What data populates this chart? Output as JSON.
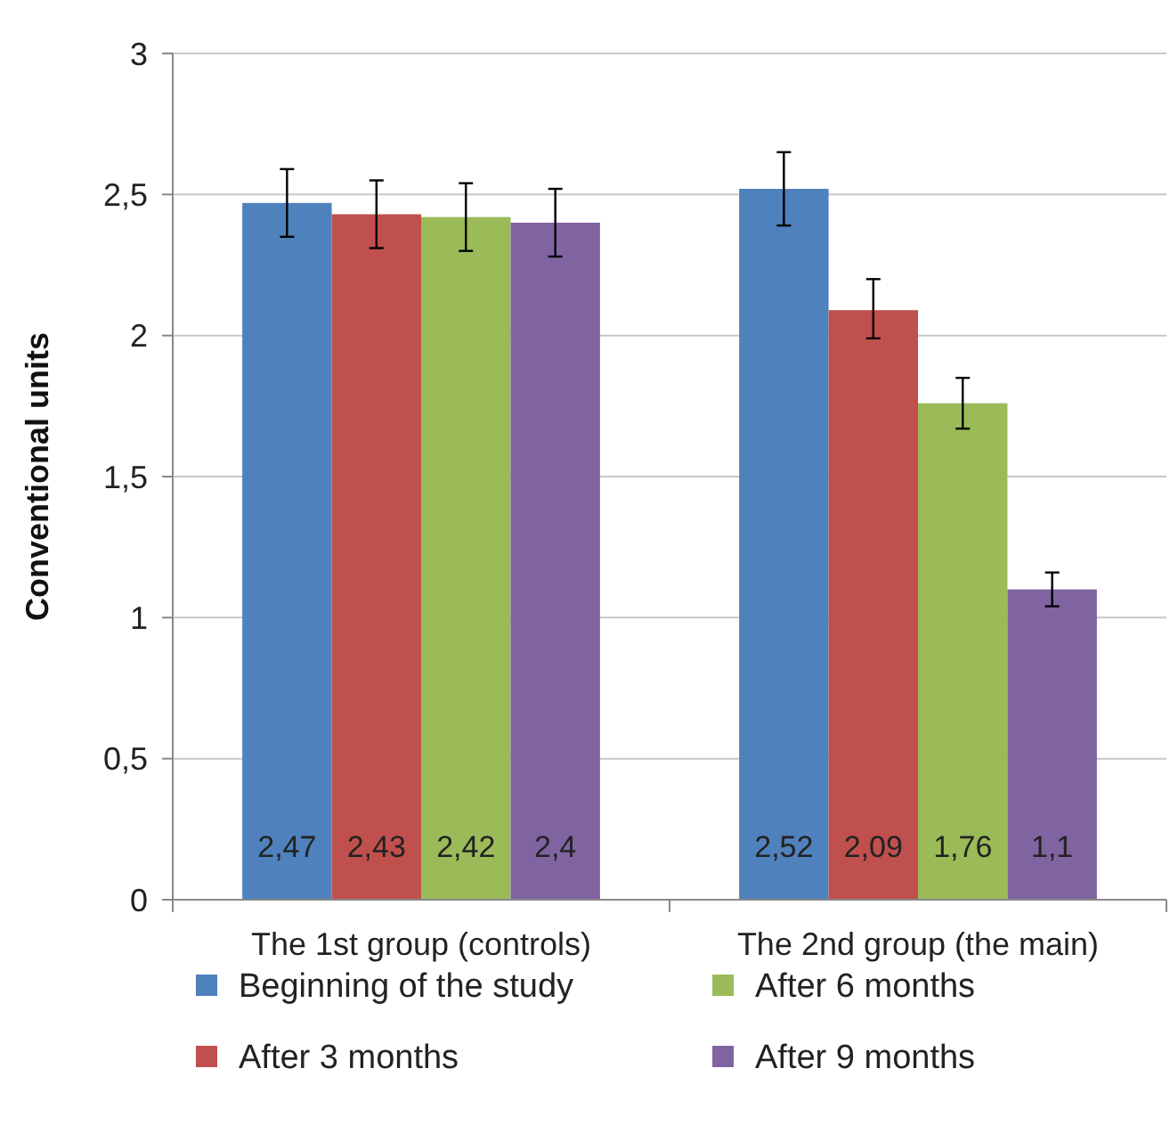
{
  "chart_data": {
    "type": "bar",
    "ylabel": "Conventional units",
    "categories": [
      "The 1st group (controls)",
      "The 2nd group (the main)"
    ],
    "series": [
      {
        "name": "Beginning of the study",
        "color": "#4f81bd",
        "values": [
          2.47,
          2.52
        ],
        "errors": [
          [
            2.35,
            2.59
          ],
          [
            2.39,
            2.65
          ]
        ],
        "value_labels": [
          "2,47",
          "2,52"
        ]
      },
      {
        "name": "After 3 months",
        "color": "#c0504d",
        "values": [
          2.43,
          2.09
        ],
        "errors": [
          [
            2.31,
            2.55
          ],
          [
            1.99,
            2.2
          ]
        ],
        "value_labels": [
          "2,43",
          "2,09"
        ]
      },
      {
        "name": "After 6 months",
        "color": "#9bbb59",
        "values": [
          2.42,
          1.76
        ],
        "errors": [
          [
            2.3,
            2.54
          ],
          [
            1.67,
            1.85
          ]
        ],
        "value_labels": [
          "2,42",
          "1,76"
        ]
      },
      {
        "name": "After 9 months",
        "color": "#8064a2",
        "values": [
          2.4,
          1.1
        ],
        "errors": [
          [
            2.28,
            2.52
          ],
          [
            1.04,
            1.16
          ]
        ],
        "value_labels": [
          "2,4",
          "1,1"
        ]
      }
    ],
    "ylim": [
      0,
      3
    ],
    "yticks": [
      0,
      {
        "value": 0.5,
        "label": "0,5"
      },
      1,
      {
        "value": 1.5,
        "label": "1,5"
      },
      2,
      {
        "value": 2.5,
        "label": "2,5"
      },
      3
    ],
    "grid": "y",
    "legend": "bottom"
  }
}
